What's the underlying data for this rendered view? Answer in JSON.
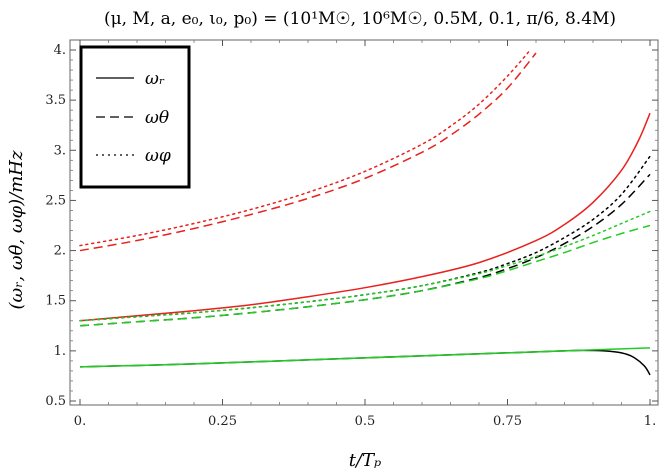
{
  "chart_data": {
    "type": "line",
    "title": "(μ, M, a, e₀, ι₀, p₀) = (10¹M☉, 10⁶M☉, 0.5M, 0.1, π/6, 8.4M)",
    "xlabel": "t/Tₚ",
    "ylabel": "(ωᵣ, ωθ, ωφ)/mHz",
    "xlim": [
      0,
      1
    ],
    "ylim": [
      0.5,
      4.0
    ],
    "xticks": [
      0,
      0.25,
      0.5,
      0.75,
      1.0
    ],
    "xtick_labels": [
      "0.",
      "0.25",
      "0.5",
      "0.75",
      "1."
    ],
    "yticks": [
      0.5,
      1,
      1.5,
      2,
      2.5,
      3,
      3.5,
      4
    ],
    "ytick_labels": [
      "0.5",
      "1.",
      "1.5",
      "2.",
      "2.5",
      "3.",
      "3.5",
      "4."
    ],
    "grid": false,
    "legend": {
      "placement": "top-left",
      "entries": [
        {
          "label": "ωᵣ",
          "style": "solid"
        },
        {
          "label": "ωθ",
          "style": "dashed"
        },
        {
          "label": "ωφ",
          "style": "dotted"
        }
      ]
    },
    "colors": {
      "red": "#e8211d",
      "black": "#000000",
      "green": "#22cc22"
    },
    "series": [
      {
        "color": "red",
        "style": "dashed",
        "x": [
          0,
          0.1,
          0.2,
          0.3,
          0.4,
          0.5,
          0.6,
          0.65,
          0.7,
          0.75,
          0.8
        ],
        "y": [
          2.0,
          2.1,
          2.22,
          2.36,
          2.52,
          2.72,
          2.98,
          3.15,
          3.36,
          3.62,
          3.97
        ]
      },
      {
        "color": "red",
        "style": "dotted",
        "x": [
          0,
          0.1,
          0.2,
          0.3,
          0.4,
          0.5,
          0.6,
          0.65,
          0.7,
          0.75,
          0.79
        ],
        "y": [
          2.05,
          2.15,
          2.27,
          2.41,
          2.58,
          2.79,
          3.06,
          3.24,
          3.46,
          3.74,
          4.0
        ]
      },
      {
        "color": "red",
        "style": "solid",
        "x": [
          0,
          0.1,
          0.2,
          0.3,
          0.4,
          0.5,
          0.6,
          0.7,
          0.8,
          0.85,
          0.9,
          0.95,
          0.98,
          1.0
        ],
        "y": [
          1.3,
          1.35,
          1.4,
          1.46,
          1.54,
          1.63,
          1.74,
          1.88,
          2.1,
          2.26,
          2.48,
          2.8,
          3.1,
          3.37
        ]
      },
      {
        "color": "black",
        "style": "solid",
        "x": [
          0,
          0.2,
          0.4,
          0.6,
          0.8,
          0.85,
          0.88,
          0.92,
          0.95,
          0.97,
          0.99,
          1.0
        ],
        "y": [
          0.84,
          0.87,
          0.91,
          0.95,
          0.99,
          1.0,
          1.005,
          1.0,
          0.98,
          0.94,
          0.85,
          0.76
        ]
      },
      {
        "color": "green",
        "style": "solid",
        "x": [
          0,
          0.2,
          0.4,
          0.6,
          0.8,
          0.9,
          1.0
        ],
        "y": [
          0.84,
          0.87,
          0.91,
          0.95,
          0.99,
          1.01,
          1.03
        ]
      },
      {
        "color": "black",
        "style": "dashed",
        "x": [
          0,
          0.1,
          0.2,
          0.3,
          0.4,
          0.5,
          0.6,
          0.7,
          0.75,
          0.8,
          0.85,
          0.9,
          0.95,
          1.0
        ],
        "y": [
          1.25,
          1.29,
          1.33,
          1.38,
          1.44,
          1.51,
          1.6,
          1.73,
          1.82,
          1.93,
          2.07,
          2.24,
          2.46,
          2.76
        ]
      },
      {
        "color": "black",
        "style": "dotted",
        "x": [
          0,
          0.1,
          0.2,
          0.3,
          0.4,
          0.5,
          0.6,
          0.7,
          0.75,
          0.8,
          0.85,
          0.9,
          0.95,
          1.0
        ],
        "y": [
          1.3,
          1.34,
          1.38,
          1.43,
          1.49,
          1.56,
          1.65,
          1.78,
          1.87,
          1.98,
          2.13,
          2.31,
          2.56,
          2.94
        ]
      },
      {
        "color": "green",
        "style": "dashed",
        "x": [
          0,
          0.1,
          0.2,
          0.3,
          0.4,
          0.5,
          0.6,
          0.7,
          0.75,
          0.8,
          0.85,
          0.9,
          0.95,
          1.0
        ],
        "y": [
          1.25,
          1.29,
          1.33,
          1.38,
          1.44,
          1.51,
          1.6,
          1.72,
          1.8,
          1.89,
          1.98,
          2.08,
          2.17,
          2.25
        ]
      },
      {
        "color": "green",
        "style": "dotted",
        "x": [
          0,
          0.1,
          0.2,
          0.3,
          0.4,
          0.5,
          0.6,
          0.7,
          0.75,
          0.8,
          0.85,
          0.9,
          0.95,
          1.0
        ],
        "y": [
          1.3,
          1.34,
          1.38,
          1.43,
          1.49,
          1.56,
          1.65,
          1.77,
          1.85,
          1.94,
          2.04,
          2.15,
          2.27,
          2.39
        ]
      }
    ]
  }
}
